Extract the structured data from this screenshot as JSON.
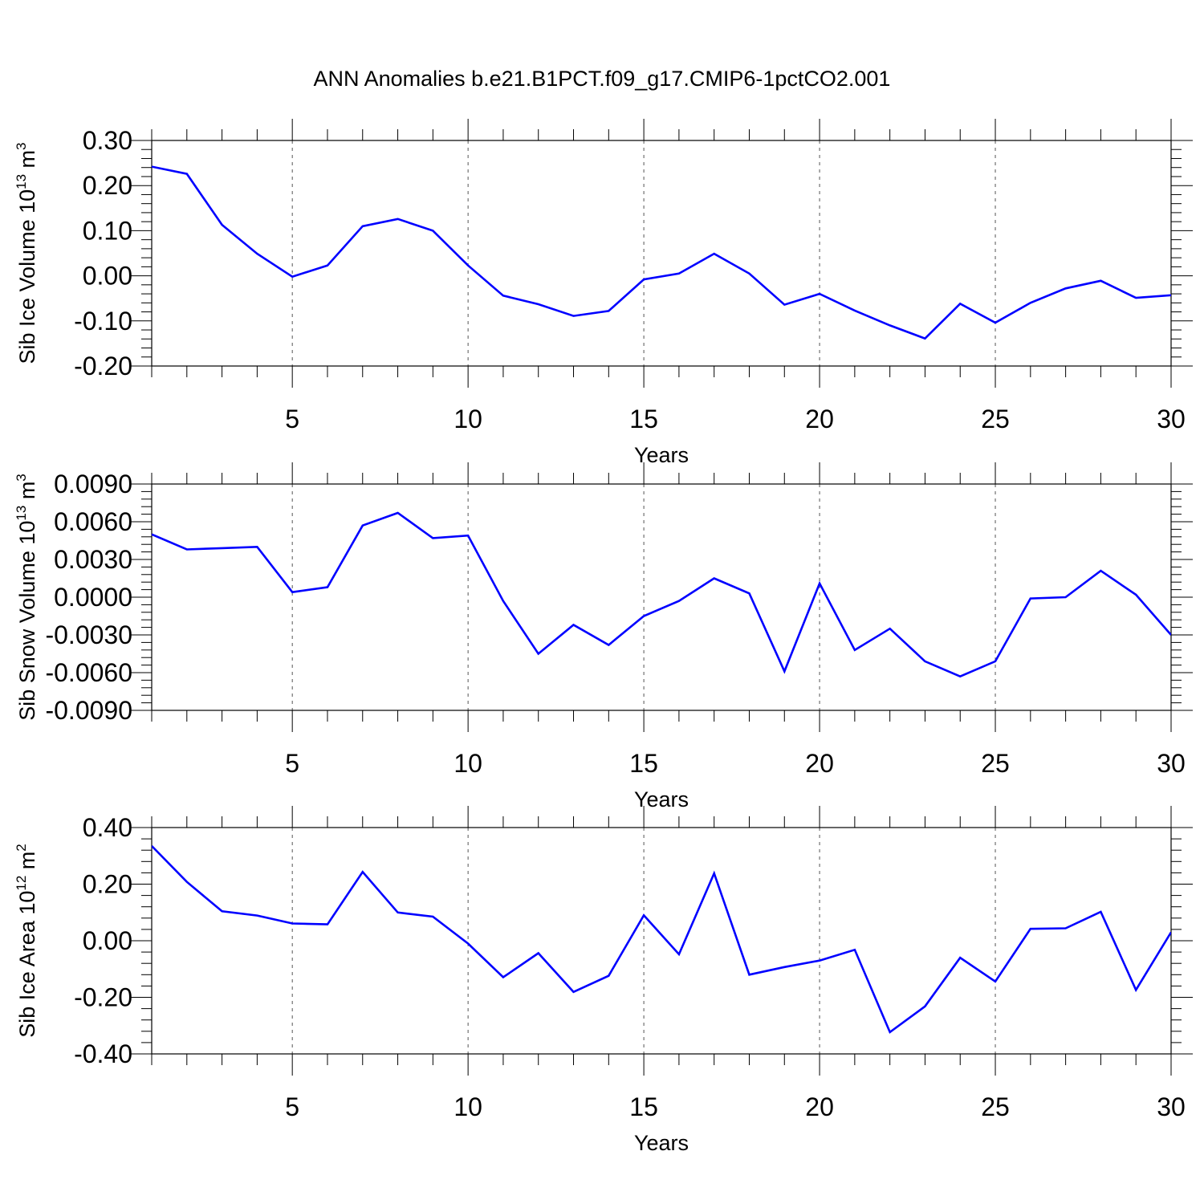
{
  "title": "ANN Anomalies b.e21.B1PCT.f09_g17.CMIP6-1pctCO2.001",
  "line_color": "#0000ff",
  "chart_data": [
    {
      "type": "line",
      "ylabel_main": "Sib Ice Volume 10",
      "ylabel_exp1": "13",
      "ylabel_mid": " m",
      "ylabel_exp2": "3",
      "xlabel": "Years",
      "xlim": [
        1,
        30
      ],
      "ylim": [
        -0.2,
        0.3
      ],
      "xticks": [
        5,
        10,
        15,
        20,
        25,
        30
      ],
      "yticks": [
        0.3,
        0.2,
        0.1,
        0.0,
        -0.1,
        -0.2
      ],
      "ytick_labels": [
        "0.30",
        "0.20",
        "0.10",
        "0.00",
        "-0.10",
        "-0.20"
      ],
      "x": [
        1,
        2,
        3,
        4,
        5,
        6,
        7,
        8,
        9,
        10,
        11,
        12,
        13,
        14,
        15,
        16,
        17,
        18,
        19,
        20,
        21,
        22,
        23,
        24,
        25,
        26,
        27,
        28,
        29,
        30
      ],
      "values": [
        0.242,
        0.226,
        0.113,
        0.049,
        -0.002,
        0.023,
        0.11,
        0.126,
        0.1,
        0.023,
        -0.044,
        -0.063,
        -0.089,
        -0.078,
        -0.008,
        0.005,
        0.049,
        0.005,
        -0.064,
        -0.04,
        -0.077,
        -0.11,
        -0.139,
        -0.062,
        -0.104,
        -0.06,
        -0.028,
        -0.011,
        -0.049,
        -0.043
      ]
    },
    {
      "type": "line",
      "ylabel_main": "Sib Snow Volume 10",
      "ylabel_exp1": "13",
      "ylabel_mid": " m",
      "ylabel_exp2": "3",
      "xlabel": "Years",
      "xlim": [
        1,
        30
      ],
      "ylim": [
        -0.009,
        0.009
      ],
      "xticks": [
        5,
        10,
        15,
        20,
        25,
        30
      ],
      "yticks": [
        0.009,
        0.006,
        0.003,
        0.0,
        -0.003,
        -0.006,
        -0.009
      ],
      "ytick_labels": [
        "0.0090",
        "0.0060",
        "0.0030",
        "0.0000",
        "-0.0030",
        "-0.0060",
        "-0.0090"
      ],
      "x": [
        1,
        2,
        3,
        4,
        5,
        6,
        7,
        8,
        9,
        10,
        11,
        12,
        13,
        14,
        15,
        16,
        17,
        18,
        19,
        20,
        21,
        22,
        23,
        24,
        25,
        26,
        27,
        28,
        29,
        30
      ],
      "values": [
        0.005,
        0.0038,
        0.0039,
        0.004,
        0.0004,
        0.0008,
        0.0057,
        0.0067,
        0.0047,
        0.0049,
        -0.0003,
        -0.0045,
        -0.0022,
        -0.0038,
        -0.0015,
        -0.0003,
        0.0015,
        0.0003,
        -0.0059,
        0.0011,
        -0.0042,
        -0.0025,
        -0.0051,
        -0.0063,
        -0.0051,
        -0.0001,
        0.0,
        0.0021,
        0.0002,
        -0.003
      ]
    },
    {
      "type": "line",
      "ylabel_main": "Sib Ice Area 10",
      "ylabel_exp1": "12",
      "ylabel_mid": " m",
      "ylabel_exp2": "2",
      "xlabel": "Years",
      "xlim": [
        1,
        30
      ],
      "ylim": [
        -0.4,
        0.4
      ],
      "xticks": [
        5,
        10,
        15,
        20,
        25,
        30
      ],
      "yticks": [
        0.4,
        0.2,
        0.0,
        -0.2,
        -0.4
      ],
      "ytick_labels": [
        "0.40",
        "0.20",
        "0.00",
        "-0.20",
        "-0.40"
      ],
      "x": [
        1,
        2,
        3,
        4,
        5,
        6,
        7,
        8,
        9,
        10,
        11,
        12,
        13,
        14,
        15,
        16,
        17,
        18,
        19,
        20,
        21,
        22,
        23,
        24,
        25,
        26,
        27,
        28,
        29,
        30
      ],
      "values": [
        0.335,
        0.208,
        0.104,
        0.089,
        0.061,
        0.058,
        0.243,
        0.1,
        0.085,
        -0.01,
        -0.129,
        -0.044,
        -0.181,
        -0.124,
        0.09,
        -0.048,
        0.238,
        -0.12,
        -0.093,
        -0.07,
        -0.032,
        -0.323,
        -0.232,
        -0.06,
        -0.144,
        0.042,
        0.044,
        0.102,
        -0.174,
        0.03
      ]
    }
  ]
}
